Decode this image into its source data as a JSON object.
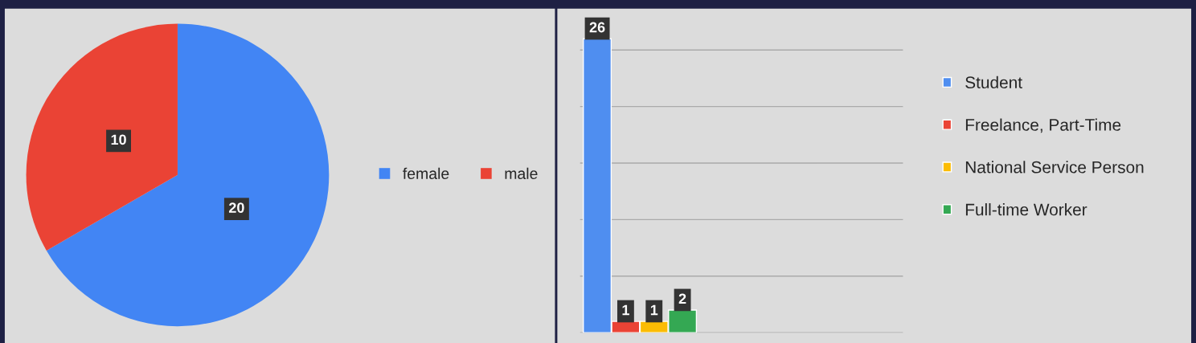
{
  "chart_data": [
    {
      "type": "pie",
      "categories": [
        "female",
        "male"
      ],
      "values": [
        20,
        10
      ],
      "colors": [
        "#4285f4",
        "#ea4335"
      ],
      "data_labels": true,
      "legend": "right"
    },
    {
      "type": "bar",
      "categories": [
        null
      ],
      "series": [
        {
          "name": "Student",
          "color": "#4f8ef0",
          "values": [
            26
          ]
        },
        {
          "name": "Freelance, Part-Time",
          "color": "#ea4335",
          "values": [
            1
          ]
        },
        {
          "name": "National Service Person",
          "color": "#fbbc04",
          "values": [
            1
          ]
        },
        {
          "name": "Full-time Worker",
          "color": "#34a853",
          "values": [
            2
          ]
        }
      ],
      "yticks": [
        {
          "value": 0,
          "label": null
        },
        {
          "value": 5,
          "label": null
        },
        {
          "value": 10,
          "label": null
        },
        {
          "value": 15,
          "label": null
        },
        {
          "value": 20,
          "label": null
        },
        {
          "value": 25,
          "label": null
        }
      ],
      "grid": "y",
      "data_labels": true,
      "legend": "right"
    }
  ]
}
